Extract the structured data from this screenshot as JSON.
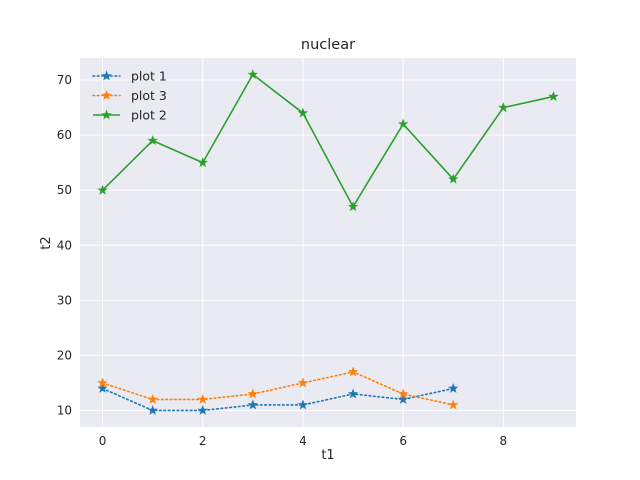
{
  "chart_data": {
    "type": "line",
    "title": "nuclear",
    "xlabel": "t1",
    "ylabel": "t2",
    "xlim": [
      -0.45,
      9.45
    ],
    "ylim": [
      7.0,
      74.0
    ],
    "xticks": [
      0,
      2,
      4,
      6,
      8
    ],
    "yticks": [
      10,
      20,
      30,
      40,
      50,
      60,
      70
    ],
    "grid": true,
    "legend_position": "upper-left",
    "series": [
      {
        "name": "plot 1",
        "color": "#1f77b4",
        "line_style": "dotted",
        "marker": "star",
        "x": [
          0,
          1,
          2,
          3,
          4,
          5,
          6,
          7
        ],
        "y": [
          14,
          10,
          10,
          11,
          11,
          13,
          12,
          14
        ]
      },
      {
        "name": "plot 3",
        "color": "#ff7f0e",
        "line_style": "dotted",
        "marker": "star",
        "x": [
          0,
          1,
          2,
          3,
          4,
          5,
          6,
          7
        ],
        "y": [
          15,
          12,
          12,
          13,
          15,
          17,
          13,
          11
        ]
      },
      {
        "name": "plot 2",
        "color": "#2ca02c",
        "line_style": "solid",
        "marker": "star",
        "x": [
          0,
          1,
          2,
          3,
          4,
          5,
          6,
          7,
          8,
          9
        ],
        "y": [
          50,
          59,
          55,
          71,
          64,
          47,
          62,
          52,
          65,
          67
        ]
      }
    ]
  }
}
